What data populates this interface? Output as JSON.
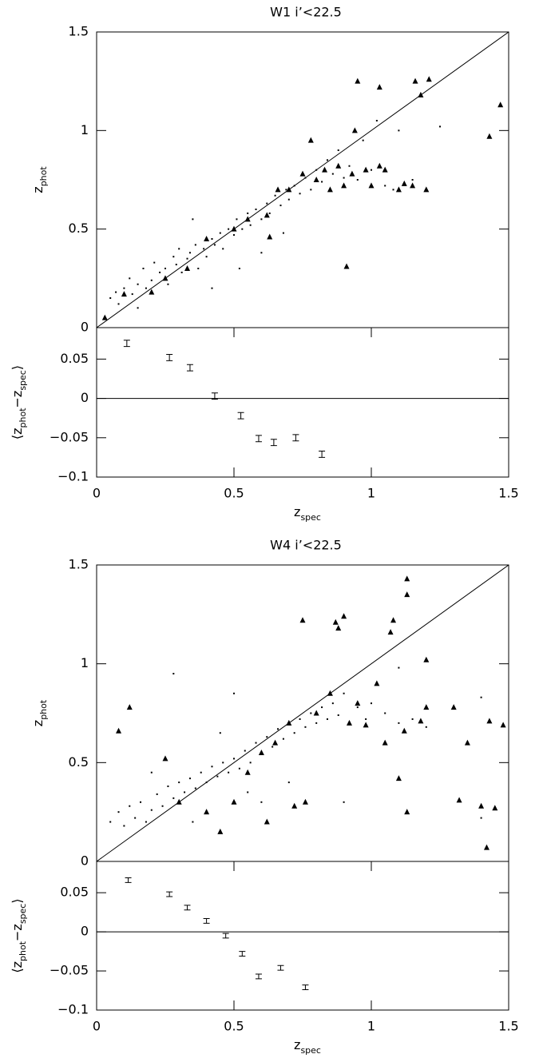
{
  "chart_data": [
    {
      "type": "scatter",
      "title": "W1 i’<22.5",
      "ylabel": [
        {
          "t": "z"
        },
        {
          "sub": "phot"
        }
      ],
      "xlim": [
        0,
        1.5
      ],
      "ylim": [
        0,
        1.5
      ],
      "yticks": [
        0,
        0.5,
        1,
        1.5
      ],
      "diagonal": true,
      "series": [
        {
          "marker": "dot",
          "color": "#000",
          "x": [
            0.05,
            0.07,
            0.08,
            0.1,
            0.12,
            0.13,
            0.15,
            0.17,
            0.18,
            0.2,
            0.21,
            0.23,
            0.25,
            0.26,
            0.28,
            0.29,
            0.3,
            0.31,
            0.33,
            0.34,
            0.36,
            0.37,
            0.39,
            0.4,
            0.42,
            0.43,
            0.45,
            0.46,
            0.48,
            0.5,
            0.51,
            0.53,
            0.55,
            0.56,
            0.58,
            0.6,
            0.62,
            0.63,
            0.65,
            0.67,
            0.69,
            0.7,
            0.72,
            0.74,
            0.76,
            0.78,
            0.8,
            0.82,
            0.84,
            0.86,
            0.88,
            0.9,
            0.92,
            0.95,
            0.97,
            1.0,
            1.02,
            1.05,
            1.08,
            1.1,
            1.15,
            0.52,
            0.42,
            0.6,
            1.25,
            0.35,
            0.15,
            0.68
          ],
          "values": [
            0.15,
            0.18,
            0.12,
            0.2,
            0.25,
            0.17,
            0.22,
            0.3,
            0.2,
            0.24,
            0.33,
            0.28,
            0.3,
            0.22,
            0.36,
            0.32,
            0.4,
            0.28,
            0.35,
            0.38,
            0.42,
            0.3,
            0.4,
            0.36,
            0.45,
            0.42,
            0.48,
            0.4,
            0.5,
            0.47,
            0.55,
            0.5,
            0.58,
            0.52,
            0.6,
            0.55,
            0.63,
            0.58,
            0.67,
            0.62,
            0.7,
            0.65,
            0.72,
            0.68,
            0.76,
            0.7,
            0.8,
            0.74,
            0.85,
            0.78,
            0.9,
            0.76,
            0.82,
            0.75,
            0.95,
            0.8,
            1.05,
            0.72,
            0.7,
            1.0,
            0.75,
            0.3,
            0.2,
            0.38,
            1.02,
            0.55,
            0.1,
            0.48
          ]
        },
        {
          "marker": "triangle",
          "color": "#000",
          "x": [
            0.03,
            0.1,
            0.2,
            0.25,
            0.33,
            0.4,
            0.5,
            0.55,
            0.62,
            0.66,
            0.63,
            0.7,
            0.75,
            0.8,
            0.83,
            0.85,
            0.88,
            0.9,
            0.91,
            0.93,
            0.95,
            0.98,
            1.0,
            1.03,
            1.05,
            1.1,
            1.12,
            1.15,
            1.18,
            1.2,
            1.16,
            1.21,
            1.43,
            1.47,
            1.03,
            0.94,
            0.78
          ],
          "values": [
            0.05,
            0.17,
            0.18,
            0.25,
            0.3,
            0.45,
            0.5,
            0.55,
            0.57,
            0.7,
            0.46,
            0.7,
            0.78,
            0.75,
            0.8,
            0.7,
            0.82,
            0.72,
            0.31,
            0.78,
            1.25,
            0.8,
            0.72,
            0.82,
            0.8,
            0.7,
            0.73,
            0.72,
            1.18,
            0.7,
            1.25,
            1.26,
            0.97,
            1.13,
            1.22,
            1.0,
            0.95
          ]
        }
      ]
    },
    {
      "type": "errorbar",
      "ylabel": [
        {
          "t": "⟨z"
        },
        {
          "sub": "phot"
        },
        {
          "t": "−z"
        },
        {
          "sub": "spec"
        },
        {
          "t": "⟩"
        }
      ],
      "xlabel": [
        {
          "t": "z"
        },
        {
          "sub": "spec"
        }
      ],
      "x": [
        0.11,
        0.265,
        0.34,
        0.43,
        0.525,
        0.59,
        0.645,
        0.725,
        0.82
      ],
      "values": [
        0.07,
        0.052,
        0.039,
        0.003,
        -0.022,
        -0.051,
        -0.056,
        -0.05,
        -0.071
      ],
      "errors": [
        0.004,
        0.004,
        0.004,
        0.004,
        0.004,
        0.004,
        0.004,
        0.004,
        0.004
      ],
      "color": "#000",
      "xlim": [
        0,
        1.5
      ],
      "ylim": [
        -0.1,
        0.09
      ],
      "xticks": [
        0,
        0.5,
        1,
        1.5
      ],
      "yticks": [
        {
          "value": -0.1,
          "label": "−0.1"
        },
        {
          "value": -0.05,
          "label": "−0.05"
        },
        0,
        0.05
      ],
      "zero_line": true
    },
    {
      "type": "scatter",
      "title": "W4 i’<22.5",
      "ylabel": [
        {
          "t": "z"
        },
        {
          "sub": "phot"
        }
      ],
      "xlim": [
        0,
        1.5
      ],
      "ylim": [
        0,
        1.5
      ],
      "yticks": [
        0,
        0.5,
        1,
        1.5
      ],
      "diagonal": true,
      "series": [
        {
          "marker": "dot",
          "color": "#000",
          "x": [
            0.05,
            0.08,
            0.1,
            0.12,
            0.14,
            0.16,
            0.18,
            0.2,
            0.22,
            0.24,
            0.26,
            0.28,
            0.3,
            0.32,
            0.34,
            0.36,
            0.38,
            0.4,
            0.42,
            0.44,
            0.46,
            0.48,
            0.5,
            0.52,
            0.54,
            0.56,
            0.58,
            0.6,
            0.62,
            0.64,
            0.66,
            0.68,
            0.7,
            0.72,
            0.74,
            0.76,
            0.78,
            0.8,
            0.82,
            0.84,
            0.86,
            0.88,
            0.9,
            0.92,
            0.95,
            0.98,
            1.0,
            1.05,
            1.1,
            1.15,
            1.2,
            0.28,
            0.5,
            0.4,
            0.6,
            0.7,
            0.9,
            1.1,
            1.4,
            1.4,
            0.45,
            0.35,
            0.2,
            0.55
          ],
          "values": [
            0.2,
            0.25,
            0.18,
            0.28,
            0.22,
            0.3,
            0.2,
            0.26,
            0.34,
            0.28,
            0.38,
            0.32,
            0.4,
            0.35,
            0.42,
            0.37,
            0.45,
            0.4,
            0.48,
            0.43,
            0.5,
            0.45,
            0.52,
            0.47,
            0.56,
            0.5,
            0.6,
            0.55,
            0.63,
            0.58,
            0.67,
            0.62,
            0.7,
            0.65,
            0.72,
            0.68,
            0.75,
            0.7,
            0.78,
            0.72,
            0.8,
            0.74,
            0.85,
            0.7,
            0.78,
            0.72,
            0.8,
            0.75,
            0.7,
            0.72,
            0.68,
            0.95,
            0.85,
            0.25,
            0.3,
            0.4,
            0.3,
            0.98,
            0.22,
            0.83,
            0.65,
            0.2,
            0.45,
            0.35
          ]
        },
        {
          "marker": "triangle",
          "color": "#000",
          "x": [
            0.08,
            0.12,
            0.25,
            0.3,
            0.4,
            0.45,
            0.5,
            0.55,
            0.6,
            0.62,
            0.65,
            0.7,
            0.72,
            0.75,
            0.76,
            0.8,
            0.85,
            0.87,
            0.9,
            0.88,
            0.92,
            0.95,
            0.98,
            1.02,
            1.05,
            1.07,
            1.08,
            1.1,
            1.12,
            1.13,
            1.13,
            1.13,
            1.2,
            1.18,
            1.3,
            1.32,
            1.35,
            1.4,
            1.42,
            1.43,
            1.45,
            1.48,
            1.2
          ],
          "values": [
            0.66,
            0.78,
            0.52,
            0.3,
            0.25,
            0.15,
            0.3,
            0.45,
            0.55,
            0.2,
            0.6,
            0.7,
            0.28,
            1.22,
            0.3,
            0.75,
            0.85,
            1.21,
            1.24,
            1.18,
            0.7,
            0.8,
            0.69,
            0.9,
            0.6,
            1.16,
            1.22,
            0.42,
            0.66,
            1.43,
            1.35,
            0.25,
            1.02,
            0.71,
            0.78,
            0.31,
            0.6,
            0.28,
            0.07,
            0.71,
            0.27,
            0.69,
            0.78
          ]
        }
      ]
    },
    {
      "type": "errorbar",
      "ylabel": [
        {
          "t": "⟨z"
        },
        {
          "sub": "phot"
        },
        {
          "t": "−z"
        },
        {
          "sub": "spec"
        },
        {
          "t": "⟩"
        }
      ],
      "xlabel": [
        {
          "t": "z"
        },
        {
          "sub": "spec"
        }
      ],
      "x": [
        0.115,
        0.265,
        0.33,
        0.4,
        0.47,
        0.53,
        0.59,
        0.67,
        0.76
      ],
      "values": [
        0.066,
        0.048,
        0.031,
        0.014,
        -0.005,
        -0.028,
        -0.057,
        -0.046,
        -0.071
      ],
      "errors": [
        0.003,
        0.003,
        0.003,
        0.003,
        0.003,
        0.003,
        0.003,
        0.003,
        0.003
      ],
      "color": "#000",
      "xlim": [
        0,
        1.5
      ],
      "ylim": [
        -0.1,
        0.09
      ],
      "xticks": [
        0,
        0.5,
        1,
        1.5
      ],
      "yticks": [
        {
          "value": -0.1,
          "label": "−0.1"
        },
        {
          "value": -0.05,
          "label": "−0.05"
        },
        0,
        0.05
      ],
      "zero_line": true
    }
  ]
}
